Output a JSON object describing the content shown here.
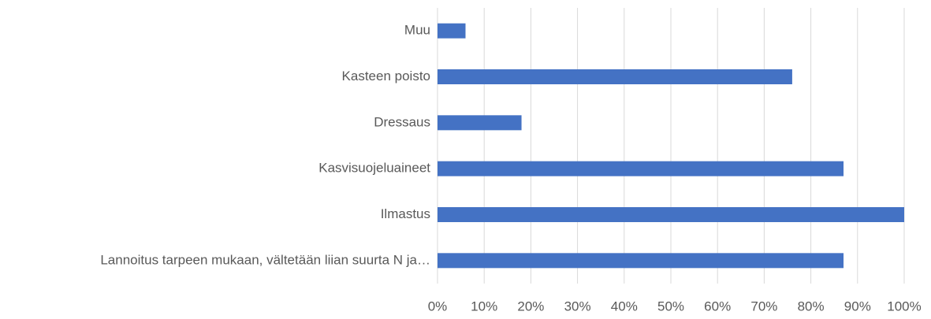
{
  "chart_data": {
    "type": "bar",
    "orientation": "horizontal",
    "categories": [
      "Muu",
      "Kasteen poisto",
      "Dressaus",
      "Kasvisuojeluaineet",
      "Ilmastus",
      "Lannoitus tarpeen mukaan, vältetään liian suurta N ja…"
    ],
    "values": [
      6,
      76,
      18,
      87,
      100,
      87
    ],
    "color": "#4472c4",
    "xlim": [
      0,
      100
    ],
    "xticks": [
      {
        "value": 0,
        "label": "0%"
      },
      {
        "value": 10,
        "label": "10%"
      },
      {
        "value": 20,
        "label": "20%"
      },
      {
        "value": 30,
        "label": "30%"
      },
      {
        "value": 40,
        "label": "40%"
      },
      {
        "value": 50,
        "label": "50%"
      },
      {
        "value": 60,
        "label": "60%"
      },
      {
        "value": 70,
        "label": "70%"
      },
      {
        "value": 80,
        "label": "80%"
      },
      {
        "value": 90,
        "label": "90%"
      },
      {
        "value": 100,
        "label": "100%"
      }
    ],
    "grid": true
  }
}
